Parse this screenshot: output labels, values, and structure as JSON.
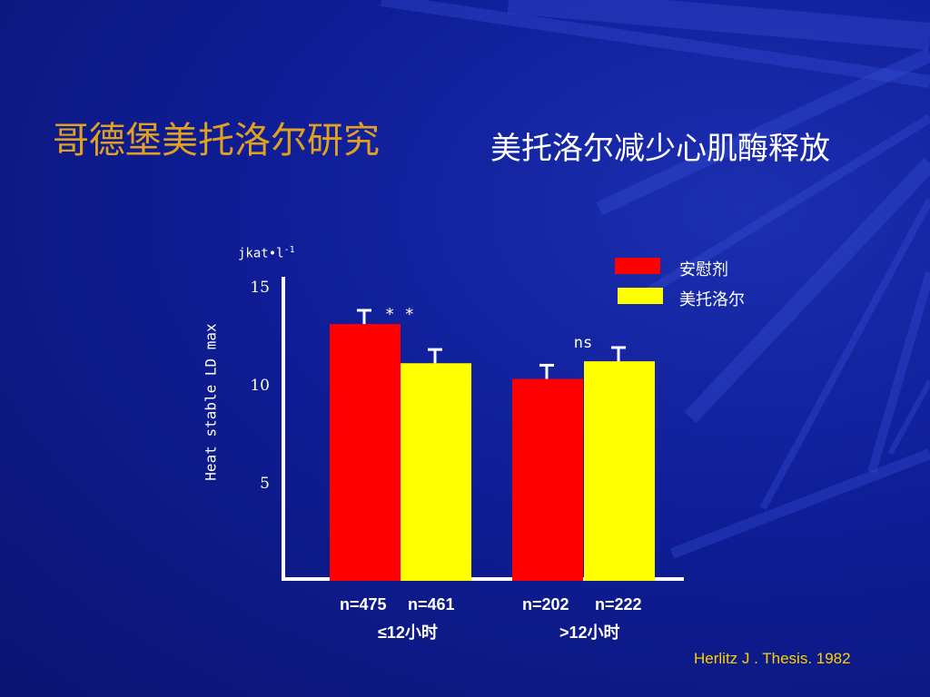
{
  "title": "哥德堡美托洛尔研究",
  "subtitle": "美托洛尔减少心肌酶释放",
  "chart_data": {
    "type": "bar",
    "unit_label": "jkat•l",
    "unit_exp": "-1",
    "ylabel": "Heat stable LD max",
    "ylim": [
      0,
      15
    ],
    "yticks": [
      5,
      10,
      15
    ],
    "categories": [
      "≤12小时",
      ">12小时"
    ],
    "series": [
      {
        "name": "安慰剂",
        "color": "#ff0000",
        "values": [
          13.1,
          10.3
        ],
        "errors": [
          0.7,
          0.7
        ],
        "n": [
          "n=475",
          "n=202"
        ]
      },
      {
        "name": "美托洛尔",
        "color": "#ffff00",
        "values": [
          11.1,
          11.2
        ],
        "errors": [
          0.7,
          0.7
        ],
        "n": [
          "n=461",
          "n=222"
        ]
      }
    ],
    "annotations": [
      "* *",
      "ns"
    ],
    "legend_position": "top-right"
  },
  "reference": "Herlitz J . Thesis. 1982"
}
